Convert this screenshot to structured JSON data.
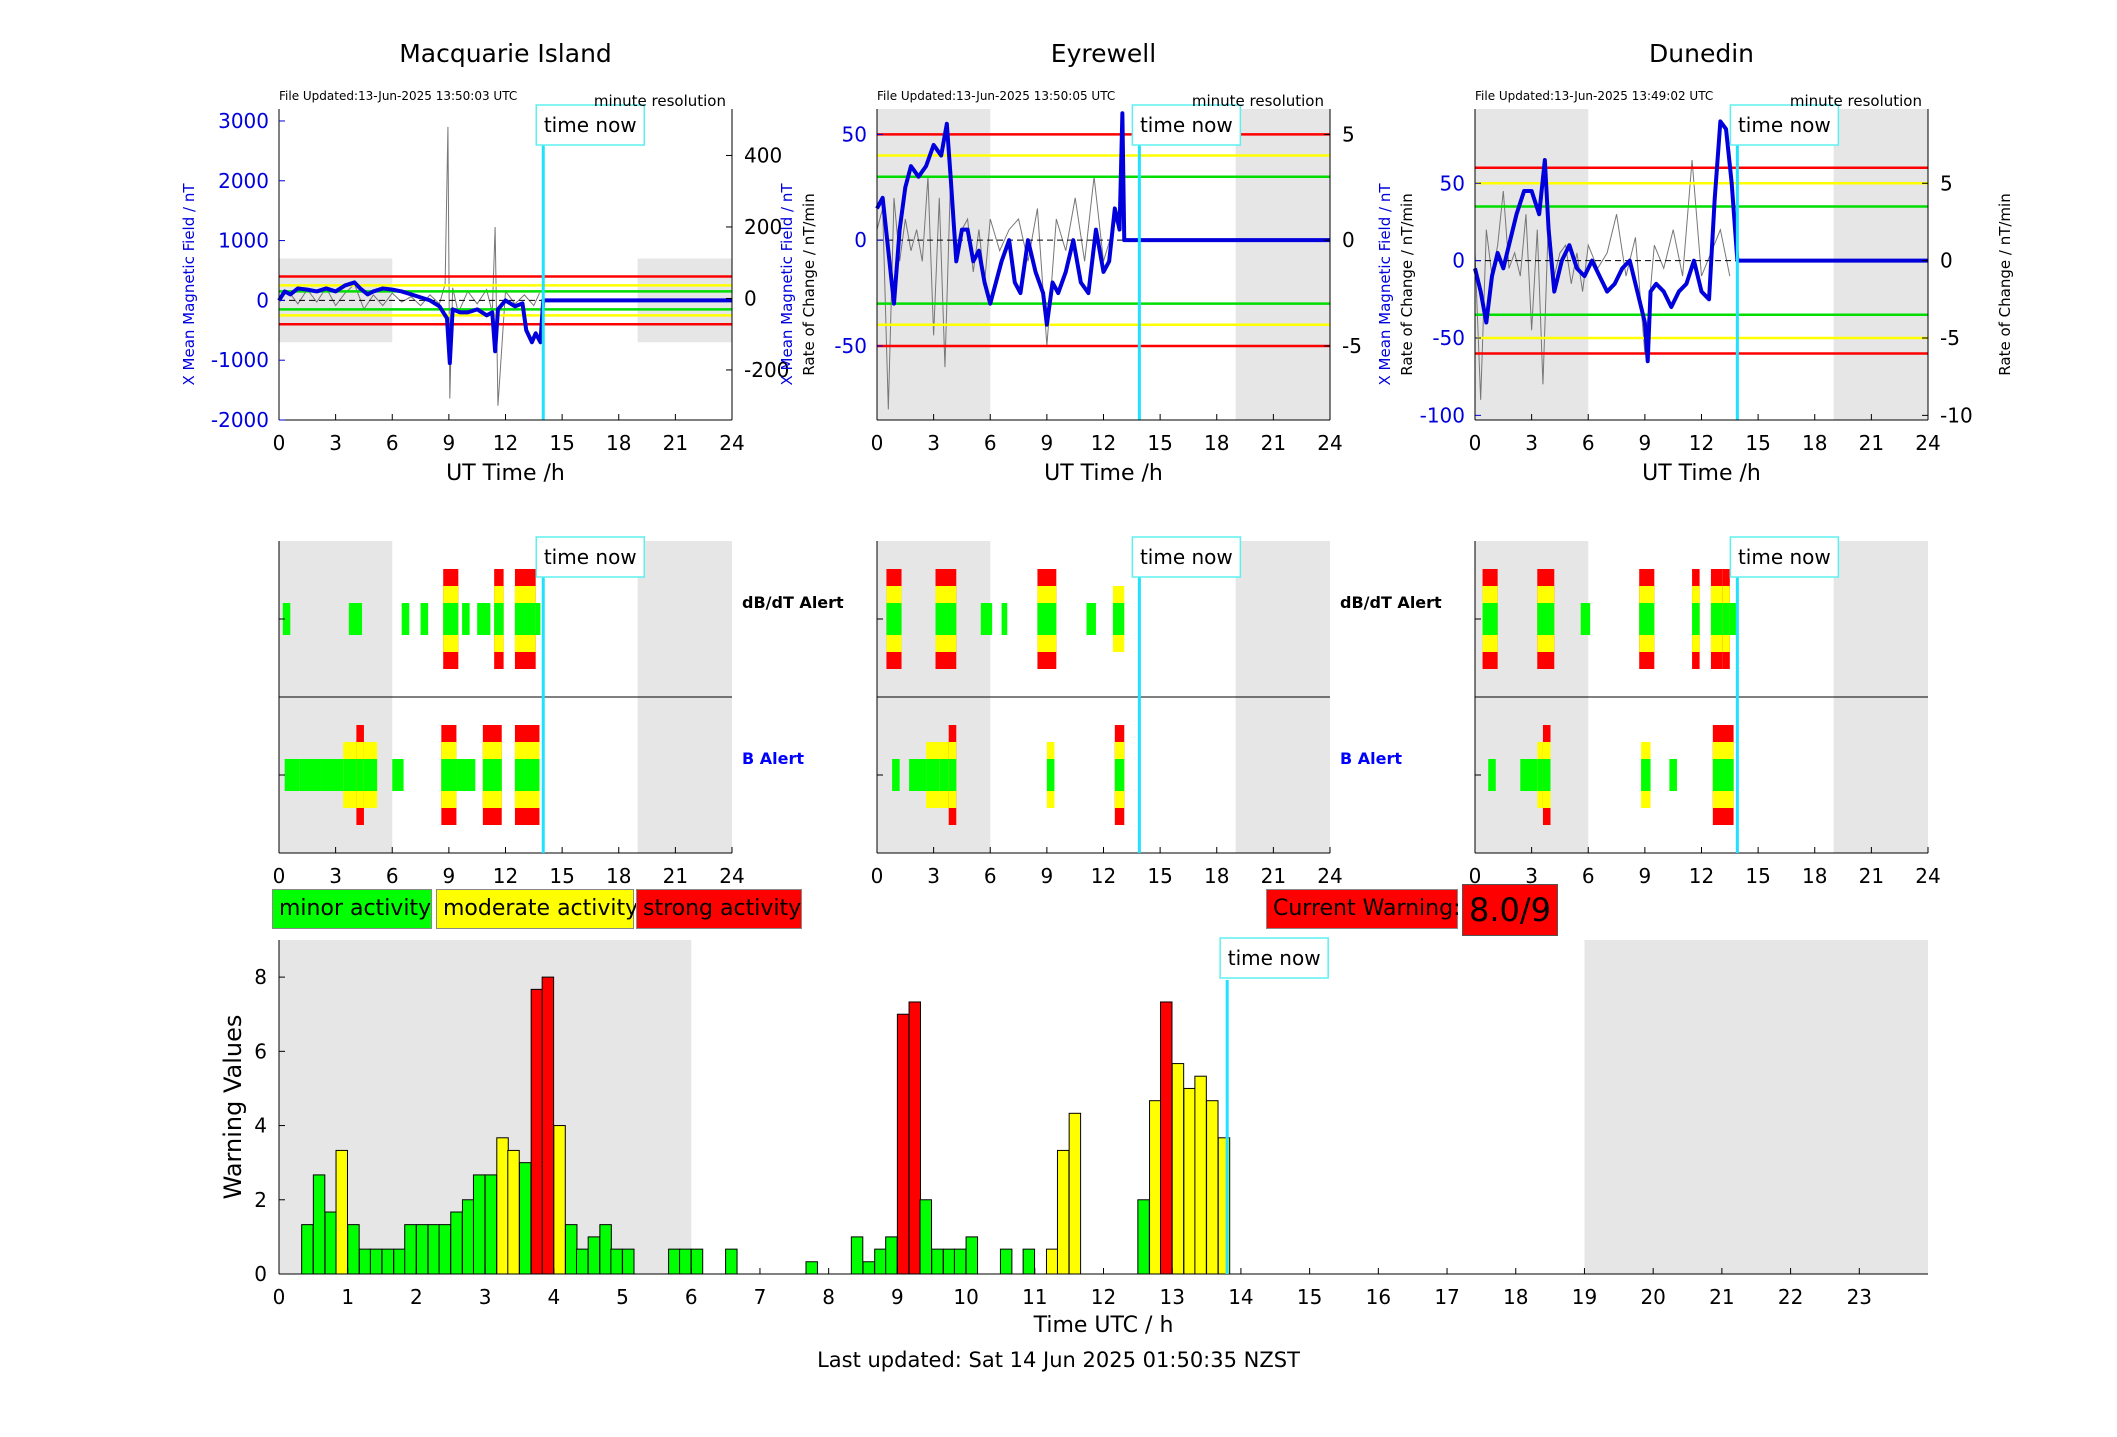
{
  "stations": [
    {
      "name": "Macquarie Island",
      "file_updated": "File Updated:13-Jun-2025 13:50:03 UTC",
      "resolution": "minute resolution",
      "time_now_label": "time now",
      "time_now_h": 14.0,
      "night_ranges": [
        [
          0,
          6
        ],
        [
          19,
          24
        ]
      ],
      "left_axis": {
        "label": "X Mean Magnetic Field / nT",
        "ylim": [
          -2000,
          3200
        ],
        "ticks": [
          -2000,
          -1000,
          0,
          1000,
          2000,
          3000
        ],
        "shade_range": [
          -700,
          700
        ]
      },
      "right_axis": {
        "label": "Rate of Change / nT/min",
        "ylim": [
          -340,
          530
        ],
        "ticks": [
          -200,
          0,
          200,
          400
        ]
      },
      "thresholds": [
        {
          "value": 400,
          "color": "#ff0000"
        },
        {
          "value": 250,
          "color": "#ffff00"
        },
        {
          "value": 150,
          "color": "#00dd00"
        },
        {
          "value": -150,
          "color": "#00dd00"
        },
        {
          "value": -250,
          "color": "#ffff00"
        },
        {
          "value": -400,
          "color": "#ff0000"
        }
      ],
      "xlabel": "UT Time /h",
      "xticks": [
        0,
        3,
        6,
        9,
        12,
        15,
        18,
        21,
        24
      ],
      "field_series": {
        "x": [
          0,
          0.3,
          0.6,
          1,
          1.5,
          2,
          2.5,
          3,
          3.5,
          4,
          4.3,
          4.7,
          5,
          5.5,
          6,
          6.5,
          7,
          7.5,
          8,
          8.5,
          8.9,
          9.05,
          9.2,
          9.6,
          10,
          10.5,
          11,
          11.3,
          11.45,
          11.6,
          12,
          12.5,
          12.9,
          13.1,
          13.4,
          13.6,
          13.85,
          14,
          24
        ],
        "y": [
          0,
          150,
          100,
          200,
          180,
          150,
          200,
          150,
          250,
          300,
          200,
          100,
          150,
          200,
          180,
          150,
          100,
          50,
          0,
          -100,
          -300,
          -1050,
          -150,
          -200,
          -200,
          -150,
          -250,
          -200,
          -850,
          -150,
          0,
          -100,
          -50,
          -500,
          -700,
          -550,
          -700,
          0,
          0
        ]
      },
      "roc_series": {
        "x": [
          0,
          0.5,
          1,
          1.5,
          2,
          2.5,
          3,
          3.5,
          4,
          4.5,
          5,
          5.5,
          6,
          6.5,
          7,
          7.5,
          8,
          8.5,
          8.8,
          8.95,
          9.05,
          9.2,
          9.5,
          10,
          10.5,
          11,
          11.3,
          11.45,
          11.6,
          12,
          12.5,
          13,
          13.5,
          13.8
        ],
        "y": [
          0,
          20,
          -15,
          25,
          -10,
          30,
          -20,
          15,
          40,
          -30,
          10,
          -20,
          15,
          -10,
          5,
          -20,
          10,
          -15,
          40,
          480,
          -280,
          30,
          -40,
          20,
          -15,
          25,
          -40,
          200,
          -300,
          20,
          -15,
          10,
          -20,
          15
        ]
      },
      "dbdt_alert": {
        "bars": [
          [
            0.2,
            0.6,
            1
          ],
          [
            3.7,
            4.4,
            1
          ],
          [
            6.5,
            6.9,
            1
          ],
          [
            7.5,
            7.9,
            1
          ],
          [
            8.7,
            9.5,
            3
          ],
          [
            9.7,
            10.1,
            1
          ],
          [
            10.5,
            11.2,
            1
          ],
          [
            11.4,
            11.9,
            3
          ],
          [
            12.5,
            13.6,
            3
          ],
          [
            13.6,
            13.85,
            1
          ]
        ]
      },
      "b_alert": {
        "bars": [
          [
            0.3,
            1.1,
            1
          ],
          [
            1.1,
            2.2,
            1
          ],
          [
            2.2,
            3.4,
            1
          ],
          [
            3.4,
            4.1,
            2
          ],
          [
            4.1,
            4.5,
            3
          ],
          [
            4.5,
            5.2,
            2
          ],
          [
            6.0,
            6.6,
            1
          ],
          [
            8.6,
            9.4,
            3
          ],
          [
            9.4,
            10.4,
            1
          ],
          [
            10.8,
            11.8,
            3
          ],
          [
            12.5,
            13.8,
            3
          ]
        ]
      }
    },
    {
      "name": "Eyrewell",
      "file_updated": "File Updated:13-Jun-2025 13:50:05 UTC",
      "resolution": "minute resolution",
      "time_now_label": "time now",
      "time_now_h": 13.9,
      "night_ranges": [
        [
          0,
          6
        ],
        [
          19,
          24
        ]
      ],
      "left_axis": {
        "label": "X Mean Magnetic Field / nT",
        "ylim": [
          -85,
          62
        ],
        "ticks": [
          -50,
          0,
          50
        ]
      },
      "right_axis": {
        "label": "Rate of Change / nT/min",
        "ylim": [
          -8.5,
          6.2
        ],
        "ticks": [
          -5,
          0,
          5
        ]
      },
      "thresholds": [
        {
          "value": 50,
          "color": "#ff0000"
        },
        {
          "value": 40,
          "color": "#ffff00"
        },
        {
          "value": 30,
          "color": "#00dd00"
        },
        {
          "value": -30,
          "color": "#00dd00"
        },
        {
          "value": -40,
          "color": "#ffff00"
        },
        {
          "value": -50,
          "color": "#ff0000"
        }
      ],
      "xlabel": "UT Time /h",
      "xticks": [
        0,
        3,
        6,
        9,
        12,
        15,
        18,
        21,
        24
      ],
      "field_series": {
        "x": [
          0,
          0.3,
          0.6,
          0.9,
          1.2,
          1.5,
          1.8,
          2.2,
          2.6,
          3.0,
          3.4,
          3.7,
          3.9,
          4.2,
          4.5,
          4.8,
          5.1,
          5.4,
          5.7,
          6.0,
          6.3,
          6.6,
          7.0,
          7.3,
          7.6,
          8.0,
          8.4,
          8.8,
          9.0,
          9.3,
          9.6,
          10.0,
          10.4,
          10.8,
          11.2,
          11.6,
          12.0,
          12.3,
          12.6,
          12.85,
          13.0,
          13.05,
          13.1,
          24
        ],
        "y": [
          15,
          20,
          -5,
          -30,
          5,
          25,
          35,
          30,
          35,
          45,
          40,
          55,
          30,
          -10,
          5,
          5,
          -10,
          -5,
          -20,
          -30,
          -20,
          -10,
          0,
          -20,
          -25,
          0,
          -15,
          -25,
          -40,
          -20,
          -25,
          -15,
          0,
          -20,
          -25,
          5,
          -15,
          -10,
          15,
          5,
          60,
          30,
          0,
          0
        ]
      },
      "roc_series": {
        "x": [
          0,
          0.3,
          0.6,
          0.9,
          1.2,
          1.5,
          1.8,
          2.1,
          2.4,
          2.7,
          3.0,
          3.3,
          3.6,
          3.9,
          4.2,
          4.5,
          4.8,
          5.1,
          5.4,
          5.7,
          6.0,
          6.5,
          7.0,
          7.5,
          8.0,
          8.5,
          9.0,
          9.5,
          10.0,
          10.5,
          11.0,
          11.5,
          12.0,
          12.5,
          13.0
        ],
        "y": [
          0.5,
          1.5,
          -8,
          2,
          -1,
          1,
          -0.5,
          0.5,
          -1,
          3,
          -4.5,
          2,
          -6,
          3,
          -1,
          0.5,
          1,
          -1.5,
          0.5,
          -2,
          1,
          -0.5,
          0.5,
          1,
          -1,
          1.5,
          -5,
          1,
          -0.5,
          2,
          -1,
          3,
          -1,
          0.5,
          2
        ]
      },
      "dbdt_alert": {
        "bars": [
          [
            0.5,
            1.3,
            3
          ],
          [
            3.1,
            4.2,
            3
          ],
          [
            5.5,
            6.1,
            1
          ],
          [
            6.6,
            6.9,
            1
          ],
          [
            8.5,
            9.5,
            3
          ],
          [
            11.1,
            11.6,
            1
          ],
          [
            12.5,
            13.1,
            2
          ]
        ]
      },
      "b_alert": {
        "bars": [
          [
            0.8,
            1.2,
            1
          ],
          [
            1.7,
            2.6,
            1
          ],
          [
            2.6,
            3.3,
            2
          ],
          [
            3.3,
            3.8,
            2
          ],
          [
            3.8,
            4.2,
            3
          ],
          [
            9.0,
            9.4,
            2
          ],
          [
            12.6,
            13.1,
            3
          ]
        ]
      }
    },
    {
      "name": "Dunedin",
      "file_updated": "File Updated:13-Jun-2025 13:49:02 UTC",
      "resolution": "minute resolution",
      "time_now_label": "time now",
      "time_now_h": 13.9,
      "night_ranges": [
        [
          0,
          6
        ],
        [
          19,
          24
        ]
      ],
      "left_axis": {
        "label": "X Mean Magnetic Field / nT",
        "ylim": [
          -103,
          98
        ],
        "ticks": [
          -100,
          -50,
          0,
          50
        ]
      },
      "right_axis": {
        "label": "Rate of Change / nT/min",
        "ylim": [
          -10.3,
          9.8
        ],
        "ticks": [
          -10,
          -5,
          0,
          5
        ]
      },
      "thresholds": [
        {
          "value": 60,
          "color": "#ff0000"
        },
        {
          "value": 50,
          "color": "#ffff00"
        },
        {
          "value": 35,
          "color": "#00dd00"
        },
        {
          "value": -35,
          "color": "#00dd00"
        },
        {
          "value": -50,
          "color": "#ffff00"
        },
        {
          "value": -60,
          "color": "#ff0000"
        }
      ],
      "xlabel": "UT Time /h",
      "xticks": [
        0,
        3,
        6,
        9,
        12,
        15,
        18,
        21,
        24
      ],
      "field_series": {
        "x": [
          0,
          0.3,
          0.6,
          0.9,
          1.2,
          1.5,
          1.8,
          2.2,
          2.6,
          3.0,
          3.4,
          3.7,
          3.9,
          4.2,
          4.6,
          5.0,
          5.4,
          5.8,
          6.2,
          6.6,
          7.0,
          7.4,
          7.8,
          8.2,
          8.6,
          9.0,
          9.15,
          9.3,
          9.6,
          10.0,
          10.4,
          10.8,
          11.2,
          11.6,
          12.0,
          12.4,
          12.7,
          13.0,
          13.3,
          13.6,
          13.9,
          24
        ],
        "y": [
          -5,
          -20,
          -40,
          -10,
          5,
          -5,
          10,
          30,
          45,
          45,
          30,
          65,
          20,
          -20,
          0,
          10,
          -5,
          -10,
          0,
          -10,
          -20,
          -15,
          -5,
          0,
          -20,
          -40,
          -65,
          -20,
          -15,
          -20,
          -30,
          -20,
          -15,
          0,
          -20,
          -25,
          40,
          90,
          85,
          50,
          0,
          0
        ]
      },
      "roc_series": {
        "x": [
          0,
          0.3,
          0.6,
          0.9,
          1.2,
          1.5,
          1.8,
          2.1,
          2.4,
          2.7,
          3.0,
          3.3,
          3.6,
          3.9,
          4.2,
          4.5,
          4.8,
          5.1,
          5.4,
          5.7,
          6.0,
          6.5,
          7.0,
          7.5,
          8.0,
          8.5,
          9.0,
          9.5,
          10.0,
          10.5,
          11.0,
          11.5,
          12.0,
          12.5,
          13.0,
          13.5
        ],
        "y": [
          0.5,
          -9,
          2,
          -1,
          1,
          4.5,
          -0.5,
          0.5,
          -1,
          3,
          -4.5,
          2,
          -8,
          3,
          -1,
          0.5,
          1,
          -1.5,
          0.5,
          -2,
          1,
          -0.5,
          0.5,
          3,
          -1,
          1.5,
          -6,
          1,
          -0.5,
          2,
          -1,
          6.5,
          -1,
          0.5,
          2,
          -1
        ]
      },
      "dbdt_alert": {
        "bars": [
          [
            0.4,
            1.2,
            3
          ],
          [
            3.3,
            4.2,
            3
          ],
          [
            5.6,
            6.1,
            1
          ],
          [
            8.7,
            9.5,
            3
          ],
          [
            11.5,
            11.9,
            3
          ],
          [
            12.5,
            13.1,
            3
          ],
          [
            13.1,
            13.5,
            3
          ],
          [
            13.5,
            13.85,
            1
          ]
        ]
      },
      "b_alert": {
        "bars": [
          [
            0.7,
            1.1,
            1
          ],
          [
            2.4,
            3.3,
            1
          ],
          [
            3.3,
            3.6,
            2
          ],
          [
            3.6,
            4.0,
            3
          ],
          [
            8.8,
            9.3,
            2
          ],
          [
            10.3,
            10.7,
            1
          ],
          [
            12.6,
            13.7,
            3
          ]
        ]
      }
    }
  ],
  "alert_labels": {
    "dbdt": "dB/dT Alert",
    "b": "B Alert"
  },
  "alert_xticks": [
    0,
    3,
    6,
    9,
    12,
    15,
    18,
    21,
    24
  ],
  "legend": {
    "minor": "minor activity",
    "moderate": "moderate activity",
    "strong": "strong activity",
    "colors": {
      "minor": "#00ff00",
      "moderate": "#ffff00",
      "strong": "#ff0000"
    }
  },
  "current_warning": {
    "label": "Current Warning:",
    "value": "8.0/9"
  },
  "warning_chart": {
    "ylabel": "Warning Values",
    "xlabel": "Time UTC / h",
    "time_now_label": "time now",
    "time_now_h": 13.8,
    "night_ranges": [
      [
        0,
        6
      ],
      [
        19,
        24
      ]
    ],
    "ylim": [
      0,
      9
    ],
    "yticks": [
      0,
      2,
      4,
      6,
      8
    ],
    "xticks": [
      0,
      1,
      2,
      3,
      4,
      5,
      6,
      7,
      8,
      9,
      10,
      11,
      12,
      13,
      14,
      15,
      16,
      17,
      18,
      19,
      20,
      21,
      22,
      23
    ],
    "bar_width_h": 0.1667,
    "bars": [
      [
        0.33,
        1.33,
        1
      ],
      [
        0.5,
        2.67,
        1
      ],
      [
        0.67,
        1.67,
        1
      ],
      [
        0.83,
        3.33,
        2
      ],
      [
        1.0,
        1.33,
        1
      ],
      [
        1.17,
        0.67,
        1
      ],
      [
        1.33,
        0.67,
        1
      ],
      [
        1.5,
        0.67,
        1
      ],
      [
        1.67,
        0.67,
        1
      ],
      [
        1.83,
        1.33,
        1
      ],
      [
        2.0,
        1.33,
        1
      ],
      [
        2.17,
        1.33,
        1
      ],
      [
        2.33,
        1.33,
        1
      ],
      [
        2.5,
        1.67,
        1
      ],
      [
        2.67,
        2.0,
        1
      ],
      [
        2.83,
        2.67,
        1
      ],
      [
        3.0,
        2.67,
        1
      ],
      [
        3.17,
        3.67,
        2
      ],
      [
        3.33,
        3.33,
        2
      ],
      [
        3.5,
        3.0,
        1
      ],
      [
        3.67,
        7.67,
        3
      ],
      [
        3.83,
        8.0,
        3
      ],
      [
        4.0,
        4.0,
        2
      ],
      [
        4.17,
        1.33,
        1
      ],
      [
        4.33,
        0.67,
        1
      ],
      [
        4.5,
        1.0,
        1
      ],
      [
        4.67,
        1.33,
        1
      ],
      [
        4.83,
        0.67,
        1
      ],
      [
        5.0,
        0.67,
        1
      ],
      [
        5.67,
        0.67,
        1
      ],
      [
        5.83,
        0.67,
        1
      ],
      [
        6.0,
        0.67,
        1
      ],
      [
        6.5,
        0.67,
        1
      ],
      [
        7.67,
        0.33,
        1
      ],
      [
        8.33,
        1.0,
        1
      ],
      [
        8.5,
        0.33,
        1
      ],
      [
        8.67,
        0.67,
        1
      ],
      [
        8.83,
        1.0,
        1
      ],
      [
        9.0,
        7.0,
        3
      ],
      [
        9.17,
        7.33,
        3
      ],
      [
        9.33,
        2.0,
        1
      ],
      [
        9.5,
        0.67,
        1
      ],
      [
        9.67,
        0.67,
        1
      ],
      [
        9.83,
        0.67,
        1
      ],
      [
        10.0,
        1.0,
        1
      ],
      [
        10.5,
        0.67,
        1
      ],
      [
        10.83,
        0.67,
        1
      ],
      [
        11.17,
        0.67,
        2
      ],
      [
        11.33,
        3.33,
        2
      ],
      [
        11.5,
        4.33,
        2
      ],
      [
        12.5,
        2.0,
        1
      ],
      [
        12.67,
        4.67,
        2
      ],
      [
        12.83,
        7.33,
        3
      ],
      [
        13.0,
        5.67,
        2
      ],
      [
        13.17,
        5.0,
        2
      ],
      [
        13.33,
        5.33,
        2
      ],
      [
        13.5,
        4.67,
        2
      ],
      [
        13.67,
        3.67,
        2
      ]
    ]
  },
  "last_updated": "Last updated: Sat 14 Jun 2025 01:50:35 NZST"
}
